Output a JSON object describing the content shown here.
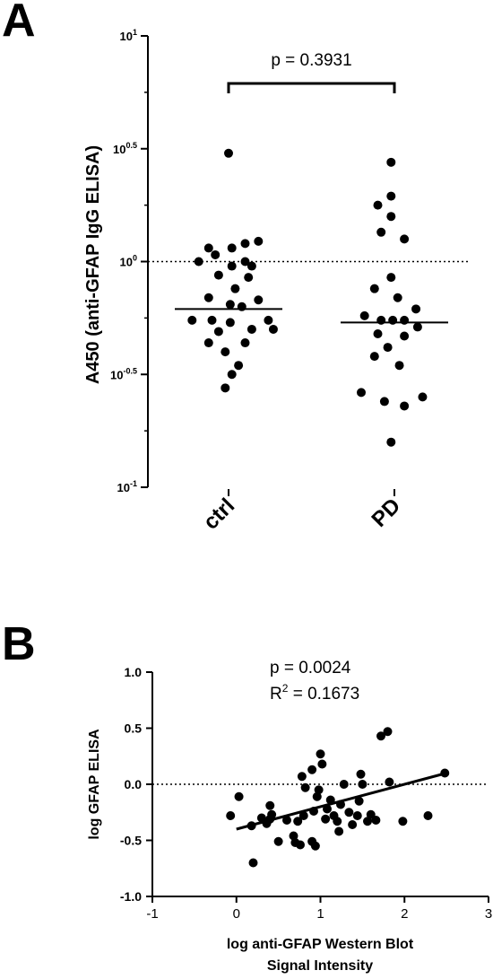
{
  "panels": {
    "a_letter": "A",
    "b_letter": "B"
  },
  "chart_data": [
    {
      "type": "scatter",
      "subtype": "dot-plot-with-median",
      "ylabel": "A450 (anti-GFAP IgG ELISA)",
      "xlabel": "",
      "y_scale": "log10",
      "ylim": [
        -1,
        1
      ],
      "y_ticks": [
        {
          "base": "10",
          "exp": "1",
          "value": 1
        },
        {
          "base": "10",
          "exp": "0.5",
          "value": 0.5
        },
        {
          "base": "10",
          "exp": "0",
          "value": 0
        },
        {
          "base": "10",
          "exp": "-0.5",
          "value": -0.5
        },
        {
          "base": "10",
          "exp": "-1",
          "value": -1
        }
      ],
      "categories": [
        "ctrl",
        "PD"
      ],
      "reference_line": {
        "value": 0,
        "style": "dotted"
      },
      "annotation": {
        "text": "p = 0.3931",
        "bracket_between": [
          "ctrl",
          "PD"
        ]
      },
      "series": [
        {
          "category": "ctrl",
          "median_log": -0.21,
          "points": [
            {
              "j": 0,
              "v": 0.48
            },
            {
              "j": 0.9,
              "v": 0.09
            },
            {
              "j": 0.5,
              "v": 0.08
            },
            {
              "j": -0.6,
              "v": 0.06
            },
            {
              "j": 0.1,
              "v": 0.06
            },
            {
              "j": -0.4,
              "v": 0.03
            },
            {
              "j": -0.9,
              "v": 0.0
            },
            {
              "j": 0.5,
              "v": 0.0
            },
            {
              "j": 0.1,
              "v": -0.02
            },
            {
              "j": 0.7,
              "v": -0.02
            },
            {
              "j": -0.3,
              "v": -0.06
            },
            {
              "j": 0.6,
              "v": -0.07
            },
            {
              "j": 0.2,
              "v": -0.12
            },
            {
              "j": -0.6,
              "v": -0.16
            },
            {
              "j": 0.9,
              "v": -0.17
            },
            {
              "j": 0.05,
              "v": -0.19
            },
            {
              "j": 0.4,
              "v": -0.2
            },
            {
              "j": -1.1,
              "v": -0.26
            },
            {
              "j": -0.5,
              "v": -0.26
            },
            {
              "j": 1.2,
              "v": -0.26
            },
            {
              "j": 0.05,
              "v": -0.27
            },
            {
              "j": 0.7,
              "v": -0.3
            },
            {
              "j": -0.3,
              "v": -0.31
            },
            {
              "j": 1.35,
              "v": -0.3
            },
            {
              "j": -0.6,
              "v": -0.36
            },
            {
              "j": 0.5,
              "v": -0.36
            },
            {
              "j": -0.1,
              "v": -0.4
            },
            {
              "j": 0.3,
              "v": -0.46
            },
            {
              "j": 0.1,
              "v": -0.5
            },
            {
              "j": -0.1,
              "v": -0.56
            }
          ]
        },
        {
          "category": "PD",
          "median_log": -0.27,
          "points": [
            {
              "j": -0.1,
              "v": 0.44
            },
            {
              "j": -0.1,
              "v": 0.29
            },
            {
              "j": -0.5,
              "v": 0.25
            },
            {
              "j": -0.1,
              "v": 0.2
            },
            {
              "j": -0.4,
              "v": 0.13
            },
            {
              "j": 0.3,
              "v": 0.1
            },
            {
              "j": -0.1,
              "v": -0.07
            },
            {
              "j": -0.6,
              "v": -0.12
            },
            {
              "j": 0.1,
              "v": -0.16
            },
            {
              "j": 0.65,
              "v": -0.21
            },
            {
              "j": -0.9,
              "v": -0.24
            },
            {
              "j": -0.4,
              "v": -0.26
            },
            {
              "j": -0.05,
              "v": -0.26
            },
            {
              "j": 0.3,
              "v": -0.26
            },
            {
              "j": 0.7,
              "v": -0.29
            },
            {
              "j": -0.5,
              "v": -0.32
            },
            {
              "j": 0.3,
              "v": -0.33
            },
            {
              "j": -0.2,
              "v": -0.38
            },
            {
              "j": -0.6,
              "v": -0.42
            },
            {
              "j": 0.15,
              "v": -0.46
            },
            {
              "j": -1.0,
              "v": -0.58
            },
            {
              "j": -0.3,
              "v": -0.62
            },
            {
              "j": 0.3,
              "v": -0.64
            },
            {
              "j": 0.85,
              "v": -0.6
            },
            {
              "j": -0.1,
              "v": -0.8
            }
          ]
        }
      ]
    },
    {
      "type": "scatter",
      "subtype": "scatter-with-regression",
      "xlabel_line1": "log anti-GFAP Western Blot",
      "xlabel_line2": "Signal Intensity",
      "ylabel": "log GFAP ELISA",
      "xlim": [
        -1,
        3
      ],
      "ylim": [
        -1.0,
        1.0
      ],
      "x_ticks": [
        "-1",
        "0",
        "1",
        "2",
        "3"
      ],
      "y_ticks": [
        "1.0",
        "0.5",
        "0.0",
        "-0.5",
        "-1.0"
      ],
      "reference_line": {
        "value": 0,
        "style": "dotted"
      },
      "annotation_p": "p = 0.0024",
      "annotation_r2_base": "R",
      "annotation_r2_sup": "2",
      "annotation_r2_rest": " = 0.1673",
      "regression": {
        "x1": 0,
        "y1": -0.4,
        "x2": 2.5,
        "y2": 0.1
      },
      "points": [
        {
          "x": -0.07,
          "y": -0.28
        },
        {
          "x": 0.03,
          "y": -0.11
        },
        {
          "x": 0.18,
          "y": -0.37
        },
        {
          "x": 0.3,
          "y": -0.3
        },
        {
          "x": 0.4,
          "y": -0.31
        },
        {
          "x": 0.42,
          "y": -0.27
        },
        {
          "x": 0.4,
          "y": -0.19
        },
        {
          "x": 0.36,
          "y": -0.35
        },
        {
          "x": 0.5,
          "y": -0.51
        },
        {
          "x": 0.6,
          "y": -0.32
        },
        {
          "x": 0.68,
          "y": -0.46
        },
        {
          "x": 0.7,
          "y": -0.52
        },
        {
          "x": 0.76,
          "y": -0.54
        },
        {
          "x": 0.8,
          "y": -0.28
        },
        {
          "x": 0.73,
          "y": -0.33
        },
        {
          "x": 0.78,
          "y": 0.07
        },
        {
          "x": 0.82,
          "y": -0.03
        },
        {
          "x": 0.9,
          "y": 0.13
        },
        {
          "x": 0.92,
          "y": -0.24
        },
        {
          "x": 0.96,
          "y": -0.11
        },
        {
          "x": 0.98,
          "y": -0.05
        },
        {
          "x": 1.0,
          "y": 0.27
        },
        {
          "x": 1.02,
          "y": 0.18
        },
        {
          "x": 1.06,
          "y": -0.31
        },
        {
          "x": 1.08,
          "y": -0.22
        },
        {
          "x": 1.12,
          "y": -0.14
        },
        {
          "x": 1.16,
          "y": -0.28
        },
        {
          "x": 1.2,
          "y": -0.33
        },
        {
          "x": 1.24,
          "y": -0.18
        },
        {
          "x": 1.28,
          "y": 0.0
        },
        {
          "x": 1.34,
          "y": -0.25
        },
        {
          "x": 1.38,
          "y": -0.36
        },
        {
          "x": 1.44,
          "y": -0.28
        },
        {
          "x": 1.46,
          "y": -0.15
        },
        {
          "x": 1.48,
          "y": 0.09
        },
        {
          "x": 1.5,
          "y": 0.0
        },
        {
          "x": 1.56,
          "y": -0.33
        },
        {
          "x": 1.6,
          "y": -0.27
        },
        {
          "x": 1.66,
          "y": -0.32
        },
        {
          "x": 1.22,
          "y": -0.42
        },
        {
          "x": 0.94,
          "y": -0.55
        },
        {
          "x": 0.9,
          "y": -0.51
        },
        {
          "x": 0.2,
          "y": -0.7
        },
        {
          "x": 1.72,
          "y": 0.43
        },
        {
          "x": 1.8,
          "y": 0.47
        },
        {
          "x": 1.82,
          "y": 0.02
        },
        {
          "x": 1.98,
          "y": -0.33
        },
        {
          "x": 2.28,
          "y": -0.28
        },
        {
          "x": 2.48,
          "y": 0.1
        }
      ]
    }
  ]
}
